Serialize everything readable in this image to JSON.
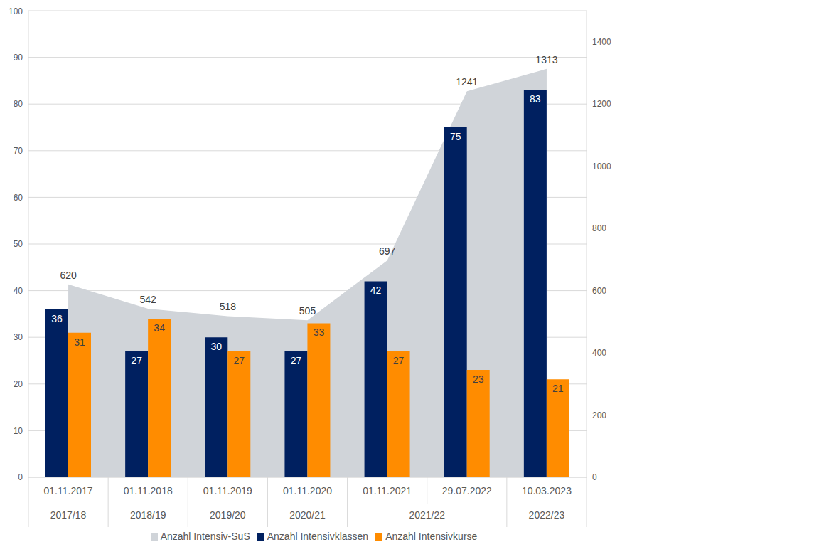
{
  "chart_data": {
    "type": "bar",
    "categories": [
      "01.11.2017",
      "01.11.2018",
      "01.11.2019",
      "01.11.2020",
      "01.11.2021",
      "29.07.2022",
      "10.03.2023"
    ],
    "category_groups": [
      "2017/18",
      "2018/19",
      "2019/20",
      "2020/21",
      "2021/22",
      "2021/22",
      "2022/23"
    ],
    "ylim": [
      0,
      100
    ],
    "yticks": [
      0,
      10,
      20,
      30,
      40,
      50,
      60,
      70,
      80,
      90,
      100
    ],
    "y2lim": [
      0,
      1500
    ],
    "y2ticks": [
      0,
      200,
      400,
      600,
      800,
      1000,
      1200,
      1400
    ],
    "grid": true,
    "data_labels": true,
    "legend": "bottom",
    "series": [
      {
        "name": "Anzahl Intensiv-SuS",
        "type": "area",
        "axis": "y2",
        "color": "#d0d4d9",
        "values": [
          620,
          542,
          518,
          505,
          697,
          1241,
          1313
        ]
      },
      {
        "name": "Anzahl Intensivklassen",
        "type": "bar",
        "color": "#002060",
        "values": [
          36,
          27,
          30,
          27,
          42,
          75,
          83
        ]
      },
      {
        "name": "Anzahl Intensivkurse",
        "type": "bar",
        "color": "#ff8c00",
        "values": [
          31,
          34,
          27,
          33,
          27,
          23,
          21
        ]
      }
    ]
  }
}
